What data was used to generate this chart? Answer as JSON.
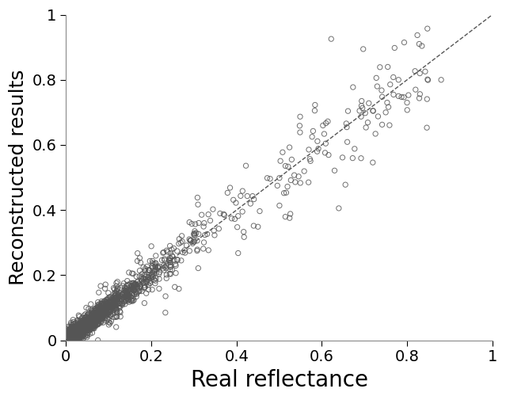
{
  "title": "",
  "xlabel": "Real reflectance",
  "ylabel": "Reconstructed results",
  "xlim": [
    0,
    1
  ],
  "ylim": [
    0,
    1
  ],
  "xticks": [
    0,
    0.2,
    0.4,
    0.6,
    0.8,
    1
  ],
  "yticks": [
    0,
    0.2,
    0.4,
    0.6,
    0.8,
    1
  ],
  "scatter_edgecolor": "#555555",
  "scatter_facecolor": "none",
  "scatter_marker": "o",
  "scatter_markersize": 4.5,
  "scatter_linewidth": 0.7,
  "line_color": "#555555",
  "line_style": "--",
  "line_width": 1.0,
  "xlabel_fontsize": 20,
  "ylabel_fontsize": 18,
  "tick_fontsize": 14,
  "background_color": "#ffffff",
  "seed": 42,
  "n_dense": 1500,
  "n_sparse": 200
}
